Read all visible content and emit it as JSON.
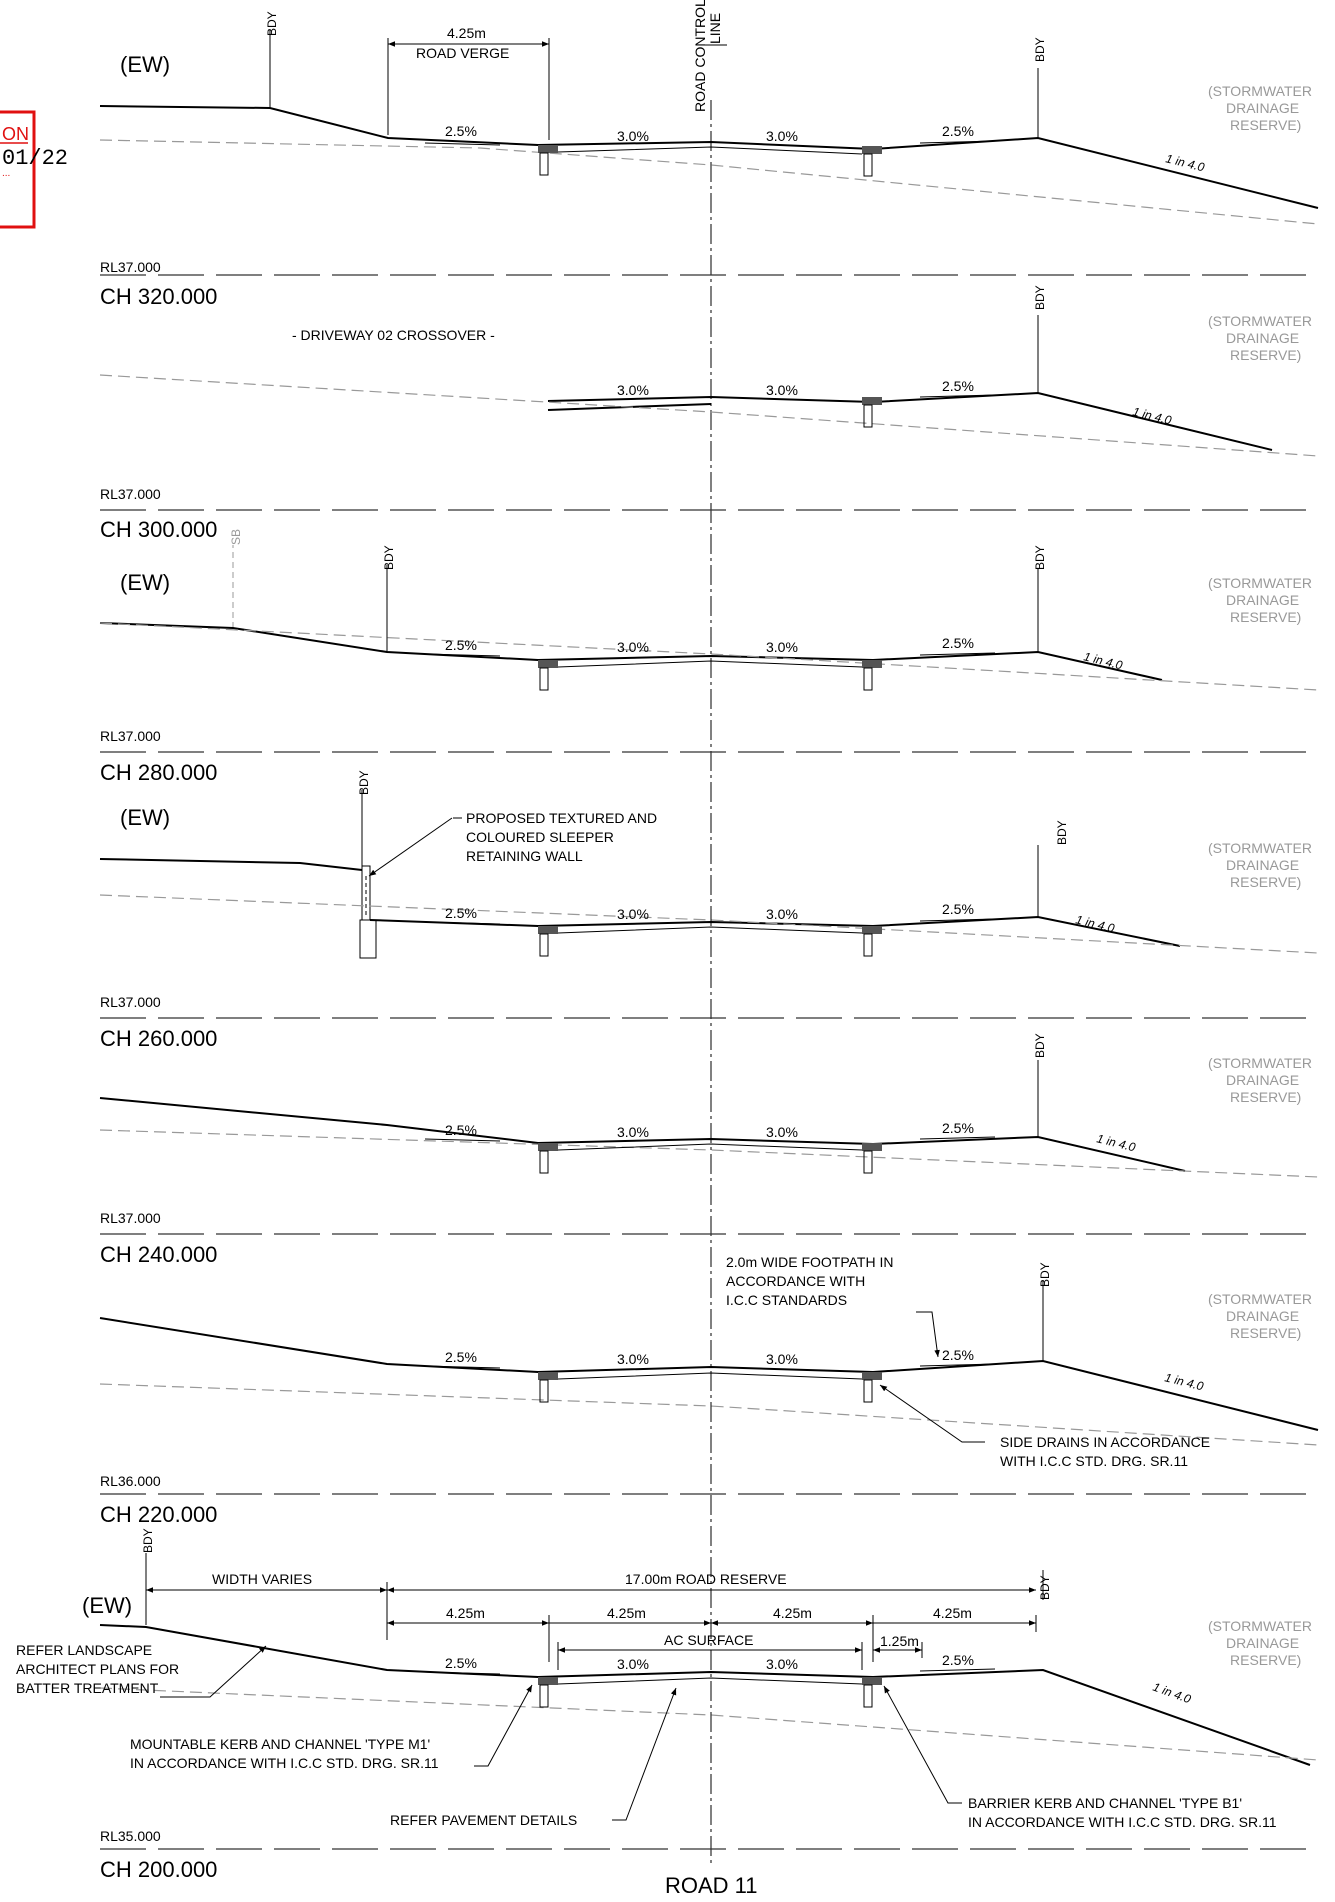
{
  "drawing_title": "ROAD 11",
  "centreline_label": [
    "ROAD CONTROL",
    "LINE"
  ],
  "stamp": {
    "top_text": "ON",
    "date_text": "01/22",
    "small_text": "...",
    "color": "#e01010"
  },
  "common": {
    "boundary": "BDY",
    "existing_ground": "(EW)",
    "reserve": [
      "(STORMWATER",
      "DRAINAGE",
      "RESERVE)"
    ],
    "batter": "1 in 4.0",
    "verge_grade": "2.5%",
    "road_grade": "3.0%"
  },
  "sections": [
    {
      "chainage": "CH 320.000",
      "datum": "RL37.000"
    },
    {
      "chainage": "CH 300.000",
      "datum": "RL37.000",
      "note": "- DRIVEWAY 02 CROSSOVER -"
    },
    {
      "chainage": "CH 280.000",
      "datum": "RL37.000",
      "sb": "SB"
    },
    {
      "chainage": "CH 260.000",
      "datum": "RL37.000",
      "wall_note": [
        "PROPOSED TEXTURED AND",
        "COLOURED SLEEPER",
        "RETAINING WALL"
      ]
    },
    {
      "chainage": "CH 240.000",
      "datum": "RL37.000"
    },
    {
      "chainage": "CH 220.000",
      "datum": "RL36.000",
      "footpath_note": [
        "2.0m WIDE FOOTPATH IN",
        "ACCORDANCE WITH",
        "I.C.C STANDARDS"
      ],
      "drains_note": [
        "SIDE DRAINS IN ACCORDANCE",
        "WITH I.C.C STD. DRG. SR.11"
      ]
    },
    {
      "chainage": "CH 200.000",
      "datum": "RL35.000"
    }
  ],
  "top_dims": {
    "verge": "4.25m",
    "verge_label": "ROAD VERGE"
  },
  "typical": {
    "width_varies": "WIDTH VARIES",
    "road_reserve": "17.00m  ROAD RESERVE",
    "dims": [
      "4.25m",
      "4.25m",
      "4.25m",
      "4.25m"
    ],
    "ac_surface": "AC SURFACE",
    "kerb_dim": "1.25m",
    "landscape_note": [
      "REFER LANDSCAPE",
      "ARCHITECT PLANS FOR",
      "BATTER TREATMENT"
    ],
    "m1_note": [
      "MOUNTABLE KERB AND CHANNEL 'TYPE M1'",
      "IN ACCORDANCE WITH I.C.C STD. DRG. SR.11"
    ],
    "pavement_note": "REFER  PAVEMENT DETAILS",
    "b1_note": [
      "BARRIER KERB AND CHANNEL 'TYPE B1'",
      "IN ACCORDANCE WITH I.C.C STD. DRG. SR.11"
    ]
  }
}
